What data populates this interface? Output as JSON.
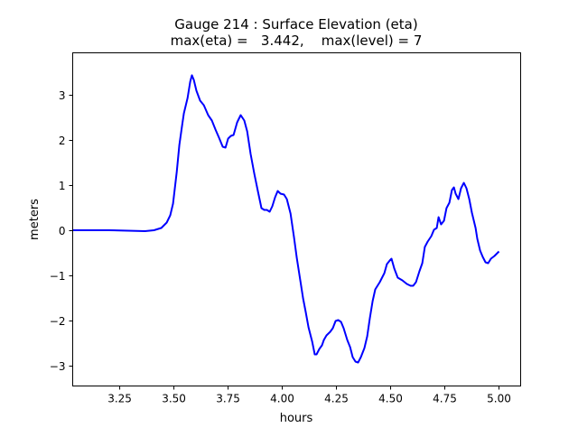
{
  "chart_data": {
    "type": "line",
    "title": "Gauge 214 : Surface Elevation (eta)",
    "subtitle": "max(eta) =   3.442,    max(level) = 7",
    "xlabel": "hours",
    "ylabel": "meters",
    "xlim": [
      3.033,
      5.1
    ],
    "ylim": [
      -3.44,
      3.94
    ],
    "xticks": [
      3.25,
      3.5,
      3.75,
      4.0,
      4.25,
      4.5,
      4.75,
      5.0
    ],
    "xtick_labels": [
      "3.25",
      "3.50",
      "3.75",
      "4.00",
      "4.25",
      "4.50",
      "4.75",
      "5.00"
    ],
    "yticks": [
      3,
      2,
      1,
      0,
      -1,
      -2,
      -3
    ],
    "ytick_labels": [
      "3",
      "2",
      "1",
      "0",
      "−1",
      "−2",
      "−3"
    ],
    "grid": false,
    "series": [
      {
        "name": "eta",
        "color": "#0000ff",
        "x": [
          3.033,
          3.2,
          3.367,
          3.408,
          3.442,
          3.467,
          3.483,
          3.496,
          3.513,
          3.525,
          3.538,
          3.546,
          3.563,
          3.575,
          3.583,
          3.592,
          3.604,
          3.621,
          3.638,
          3.658,
          3.675,
          3.692,
          3.708,
          3.725,
          3.738,
          3.75,
          3.763,
          3.775,
          3.792,
          3.808,
          3.825,
          3.838,
          3.854,
          3.871,
          3.888,
          3.904,
          3.917,
          3.929,
          3.942,
          3.954,
          3.967,
          3.979,
          3.992,
          4.008,
          4.021,
          4.038,
          4.054,
          4.067,
          4.083,
          4.096,
          4.108,
          4.121,
          4.138,
          4.15,
          4.158,
          4.171,
          4.183,
          4.192,
          4.204,
          4.221,
          4.233,
          4.246,
          4.258,
          4.271,
          4.283,
          4.3,
          4.313,
          4.325,
          4.338,
          4.35,
          4.363,
          4.379,
          4.392,
          4.404,
          4.417,
          4.429,
          4.45,
          4.471,
          4.483,
          4.496,
          4.504,
          4.517,
          4.533,
          4.554,
          4.575,
          4.592,
          4.604,
          4.617,
          4.633,
          4.646,
          4.658,
          4.671,
          4.688,
          4.7,
          4.713,
          4.721,
          4.733,
          4.746,
          4.758,
          4.771,
          4.783,
          4.792,
          4.8,
          4.813,
          4.825,
          4.838,
          4.85,
          4.863,
          4.875,
          4.892,
          4.9,
          4.913,
          4.925,
          4.938,
          4.95,
          4.963,
          4.979,
          5.0
        ],
        "y": [
          0.01,
          0.01,
          -0.01,
          0.01,
          0.06,
          0.18,
          0.34,
          0.6,
          1.3,
          1.9,
          2.34,
          2.6,
          2.94,
          3.3,
          3.442,
          3.34,
          3.1,
          2.88,
          2.78,
          2.56,
          2.44,
          2.24,
          2.06,
          1.86,
          1.84,
          2.04,
          2.1,
          2.12,
          2.4,
          2.56,
          2.44,
          2.2,
          1.7,
          1.26,
          0.86,
          0.5,
          0.46,
          0.46,
          0.42,
          0.54,
          0.74,
          0.88,
          0.82,
          0.8,
          0.7,
          0.38,
          -0.14,
          -0.6,
          -1.1,
          -1.5,
          -1.8,
          -2.14,
          -2.46,
          -2.74,
          -2.74,
          -2.62,
          -2.54,
          -2.42,
          -2.32,
          -2.24,
          -2.16,
          -2.0,
          -1.98,
          -2.02,
          -2.16,
          -2.42,
          -2.58,
          -2.8,
          -2.9,
          -2.92,
          -2.8,
          -2.6,
          -2.34,
          -1.94,
          -1.56,
          -1.3,
          -1.14,
          -0.94,
          -0.74,
          -0.66,
          -0.62,
          -0.84,
          -1.04,
          -1.1,
          -1.18,
          -1.22,
          -1.22,
          -1.14,
          -0.9,
          -0.72,
          -0.36,
          -0.24,
          -0.12,
          0.02,
          0.06,
          0.3,
          0.14,
          0.22,
          0.5,
          0.62,
          0.9,
          0.96,
          0.82,
          0.7,
          0.94,
          1.06,
          0.94,
          0.7,
          0.4,
          0.06,
          -0.18,
          -0.44,
          -0.58,
          -0.7,
          -0.72,
          -0.62,
          -0.56,
          -0.46
        ]
      }
    ]
  }
}
